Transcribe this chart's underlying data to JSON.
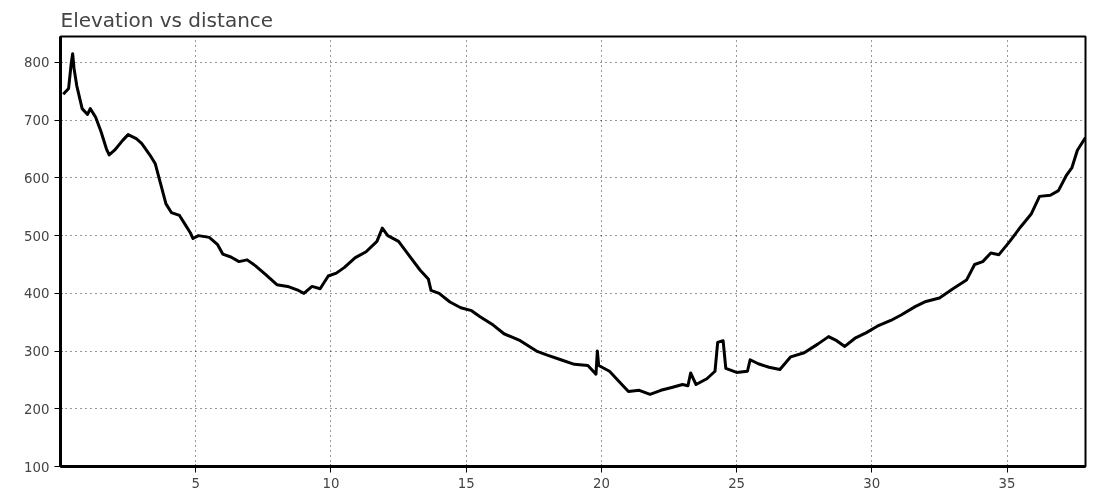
{
  "chart_data": {
    "type": "line",
    "title": "Elevation vs distance",
    "x": [
      0.1,
      0.3,
      0.4,
      0.45,
      0.5,
      0.6,
      0.7,
      0.8,
      1.0,
      1.1,
      1.3,
      1.5,
      1.7,
      1.8,
      2.0,
      2.3,
      2.5,
      2.8,
      3.0,
      3.3,
      3.5,
      3.7,
      3.9,
      4.1,
      4.4,
      4.6,
      4.8,
      4.9,
      5.1,
      5.5,
      5.8,
      6.0,
      6.3,
      6.6,
      6.9,
      7.2,
      7.6,
      8.0,
      8.4,
      8.8,
      9.0,
      9.3,
      9.6,
      9.9,
      10.2,
      10.5,
      10.9,
      11.3,
      11.7,
      11.9,
      12.1,
      12.5,
      12.9,
      13.3,
      13.6,
      13.7,
      14.0,
      14.4,
      14.8,
      15.2,
      15.5,
      16.0,
      16.4,
      17.0,
      17.6,
      18.0,
      18.5,
      19.0,
      19.5,
      19.8,
      19.85,
      19.9,
      20.3,
      20.6,
      21.0,
      21.4,
      21.8,
      22.2,
      22.6,
      23.0,
      23.2,
      23.3,
      23.5,
      23.9,
      24.2,
      24.3,
      24.5,
      24.6,
      25.0,
      25.4,
      25.5,
      25.8,
      26.2,
      26.6,
      27.0,
      27.5,
      28.0,
      28.4,
      28.7,
      29.0,
      29.4,
      29.8,
      30.2,
      30.7,
      31.1,
      31.6,
      32.0,
      32.5,
      33.0,
      33.5,
      33.8,
      34.1,
      34.4,
      34.7,
      35.1,
      35.5,
      35.9,
      36.2,
      36.6,
      36.9,
      37.2,
      37.4,
      37.6,
      37.9
    ],
    "series": [
      {
        "color": "#000000",
        "values": [
          745,
          755,
          800,
          815,
          790,
          760,
          740,
          720,
          710,
          720,
          705,
          680,
          650,
          640,
          648,
          665,
          675,
          668,
          660,
          640,
          625,
          590,
          555,
          540,
          535,
          520,
          505,
          495,
          500,
          497,
          485,
          468,
          463,
          455,
          458,
          448,
          432,
          415,
          412,
          405,
          400,
          412,
          408,
          430,
          435,
          445,
          462,
          472,
          490,
          513,
          500,
          490,
          465,
          440,
          425,
          405,
          400,
          385,
          375,
          370,
          360,
          345,
          330,
          318,
          300,
          293,
          285,
          277,
          275,
          260,
          300,
          275,
          265,
          250,
          230,
          232,
          225,
          232,
          237,
          242,
          240,
          262,
          242,
          252,
          265,
          315,
          318,
          270,
          263,
          265,
          285,
          278,
          272,
          268,
          290,
          297,
          312,
          325,
          318,
          308,
          323,
          332,
          343,
          353,
          363,
          377,
          386,
          392,
          408,
          423,
          450,
          455,
          470,
          467,
          490,
          515,
          538,
          568,
          570,
          578,
          605,
          618,
          648,
          670
        ]
      }
    ],
    "xlim": [
      0,
      37.9
    ],
    "ylim": [
      100,
      845
    ],
    "xticks": [
      5,
      10,
      15,
      20,
      25,
      30,
      35
    ],
    "yticks": [
      100,
      200,
      300,
      400,
      500,
      600,
      700,
      800
    ],
    "grid": true,
    "marker": "none",
    "line_style": "solid"
  }
}
